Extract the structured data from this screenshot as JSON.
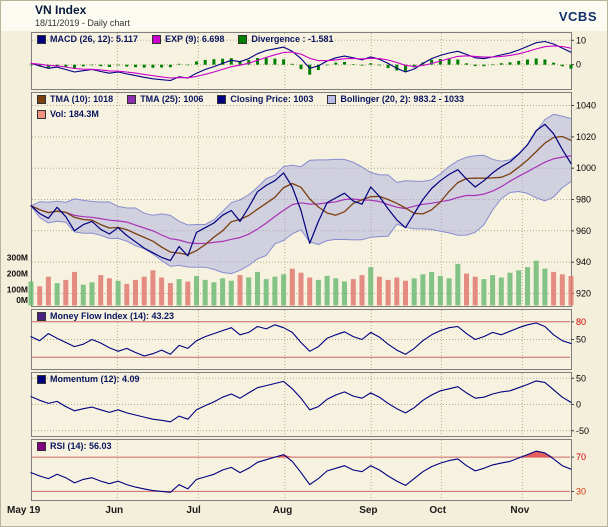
{
  "header": {
    "title": "VN Index",
    "subtitle": "18/11/2019 - Daily chart",
    "brand": "VCBS"
  },
  "chart_data": {
    "type": "line",
    "title": "VN Index daily chart with MACD, Bollinger, Volume, MFI, Momentum and RSI panels",
    "x_axis": {
      "labels": [
        "May 19",
        "Jun",
        "Jul",
        "Aug",
        "Sep",
        "Oct",
        "Nov"
      ],
      "fractions": [
        0,
        0.16,
        0.31,
        0.47,
        0.63,
        0.76,
        0.91
      ]
    },
    "panel_bg": "#f6f2df",
    "grid_color": "#b6ab8e",
    "panels": [
      {
        "id": "macd",
        "ylim": [
          -10,
          13
        ],
        "legend": [
          {
            "label": "MACD (26, 12): 5.117",
            "color": "#000080"
          },
          {
            "label": "EXP (9): 6.698",
            "color": "#cc00cc"
          },
          {
            "label": "Divergence : -1.581",
            "color": "#008000"
          }
        ],
        "ticks": [
          {
            "v": 10,
            "label": "10",
            "color": "#000000"
          },
          {
            "v": 0,
            "label": "0",
            "color": "#000000"
          }
        ],
        "exp_alpha": 0.3,
        "line_colors": {
          "macd": "#000080",
          "exp": "#cc00cc",
          "divergence": "#008000"
        },
        "series": {
          "macd": [
            0.5,
            -0.5,
            -1.5,
            -1.0,
            -2.0,
            -3.0,
            -2.5,
            -2.0,
            -2.8,
            -3.5,
            -3.0,
            -3.8,
            -4.5,
            -5.2,
            -5.8,
            -6.2,
            -6.5,
            -5.0,
            -5.5,
            -3.5,
            -2.0,
            -0.8,
            0.5,
            1.8,
            1.2,
            2.5,
            4.5,
            5.8,
            6.5,
            7.2,
            5.5,
            2.5,
            -1.5,
            -0.5,
            1.5,
            2.8,
            3.5,
            2.8,
            2.0,
            3.2,
            2.2,
            0.5,
            -1.5,
            -3.0,
            -1.8,
            0.5,
            2.5,
            3.8,
            4.8,
            5.5,
            4.2,
            2.8,
            2.5,
            3.2,
            4.0,
            4.8,
            6.0,
            7.5,
            9.0,
            9.5,
            8.5,
            6.8,
            5.117
          ]
        }
      },
      {
        "id": "price",
        "ylim": [
          912,
          1048
        ],
        "legend": [
          {
            "label": "TMA (10): 1018",
            "color": "#7b3f10"
          },
          {
            "label": "TMA (25): 1006",
            "color": "#8b2fb0"
          },
          {
            "label": "Closing Price: 1003",
            "color": "#000080"
          },
          {
            "label": "Bollinger (20, 2): 983.2 - 1033",
            "color": "#b9bce8"
          },
          {
            "label": "Vol: 184.3M",
            "color": "#ef927e"
          }
        ],
        "ticks": [
          {
            "v": 1040,
            "label": "1040"
          },
          {
            "v": 1020,
            "label": "1020"
          },
          {
            "v": 1000,
            "label": "1000"
          },
          {
            "v": 980,
            "label": "980"
          },
          {
            "v": 960,
            "label": "960"
          },
          {
            "v": 940,
            "label": "940"
          },
          {
            "v": 920,
            "label": "920"
          }
        ],
        "volume_ticks": [
          {
            "v": 300,
            "label": "300M"
          },
          {
            "v": 200,
            "label": "200M"
          },
          {
            "v": 100,
            "label": "100M"
          },
          {
            "v": 0,
            "label": "0M"
          }
        ],
        "line_colors": {
          "close": "#000080",
          "tma10": "#7b3f10",
          "tma25": "#a832b8",
          "bollinger_fill": "#a9aede",
          "bollinger_edge": "#888dd0",
          "vol_up": "#6fbb75",
          "vol_down": "#e07a72"
        },
        "series": {
          "close": [
            976,
            971,
            968,
            975,
            969,
            960,
            964,
            966,
            961,
            958,
            962,
            957,
            953,
            949,
            946,
            943,
            941,
            950,
            944,
            959,
            962,
            965,
            970,
            973,
            966,
            975,
            985,
            989,
            992,
            997,
            988,
            973,
            952,
            966,
            978,
            981,
            984,
            979,
            977,
            988,
            982,
            974,
            967,
            962,
            971,
            980,
            987,
            992,
            996,
            999,
            993,
            988,
            992,
            997,
            1001,
            1004,
            1009,
            1015,
            1024,
            1028,
            1022,
            1012,
            1003
          ],
          "volume": [
            150,
            120,
            180,
            140,
            160,
            210,
            130,
            145,
            190,
            170,
            155,
            135,
            160,
            180,
            220,
            175,
            140,
            165,
            150,
            185,
            160,
            145,
            170,
            155,
            190,
            175,
            210,
            165,
            180,
            195,
            230,
            205,
            175,
            160,
            185,
            170,
            150,
            165,
            190,
            240,
            180,
            160,
            175,
            155,
            170,
            195,
            210,
            185,
            170,
            260,
            200,
            180,
            165,
            190,
            175,
            205,
            220,
            240,
            280,
            230,
            210,
            195,
            184.3
          ]
        }
      },
      {
        "id": "mfi",
        "ylim": [
          0,
          100
        ],
        "legend": [
          {
            "label": "Money Flow Index (14): 43.23",
            "color": "#4b2182"
          }
        ],
        "ticks": [
          {
            "v": 80,
            "label": "80",
            "color": "#cc0000"
          },
          {
            "v": 50,
            "label": "50",
            "color": "#000000"
          }
        ],
        "thresholds": [
          {
            "v": 80,
            "color": "#cc6666"
          },
          {
            "v": 20,
            "color": "#cc6666"
          }
        ],
        "line_colors": {
          "mfi": "#000080"
        },
        "series": {
          "mfi": [
            55,
            48,
            60,
            52,
            45,
            38,
            42,
            50,
            44,
            36,
            30,
            35,
            28,
            22,
            26,
            32,
            25,
            40,
            35,
            48,
            55,
            60,
            65,
            70,
            58,
            62,
            72,
            68,
            75,
            70,
            62,
            45,
            30,
            38,
            52,
            58,
            63,
            55,
            50,
            62,
            54,
            42,
            32,
            25,
            35,
            48,
            58,
            65,
            70,
            72,
            60,
            50,
            55,
            62,
            58,
            64,
            70,
            75,
            78,
            72,
            58,
            48,
            43.23
          ]
        }
      },
      {
        "id": "momentum",
        "ylim": [
          -60,
          60
        ],
        "legend": [
          {
            "label": "Momentum (12): 4.09",
            "color": "#000080"
          }
        ],
        "ticks": [
          {
            "v": 50,
            "label": "50",
            "color": "#000000"
          },
          {
            "v": 0,
            "label": "0",
            "color": "#000000"
          },
          {
            "v": -50,
            "label": "-50",
            "color": "#000000"
          }
        ],
        "line_colors": {
          "momentum": "#000080"
        },
        "series": {
          "momentum": [
            15,
            8,
            2,
            6,
            -4,
            -12,
            -8,
            -5,
            -10,
            -15,
            -10,
            -16,
            -20,
            -24,
            -28,
            -30,
            -33,
            -22,
            -28,
            -10,
            -2,
            5,
            14,
            20,
            12,
            22,
            32,
            36,
            40,
            44,
            30,
            12,
            -10,
            -4,
            10,
            18,
            24,
            16,
            12,
            22,
            14,
            2,
            -8,
            -16,
            -6,
            8,
            18,
            26,
            30,
            34,
            22,
            12,
            14,
            20,
            24,
            26,
            32,
            38,
            45,
            42,
            28,
            14,
            4.09
          ]
        }
      },
      {
        "id": "rsi",
        "ylim": [
          20,
          90
        ],
        "legend": [
          {
            "label": "RSI (14): 56.03",
            "color": "#800080"
          }
        ],
        "ticks": [
          {
            "v": 70,
            "label": "70",
            "color": "#cc0000"
          },
          {
            "v": 30,
            "label": "30",
            "color": "#cc3300"
          }
        ],
        "thresholds": [
          {
            "v": 70,
            "color": "#cc6666"
          },
          {
            "v": 30,
            "color": "#cc6666"
          }
        ],
        "overbought_fill": "#e04848",
        "line_colors": {
          "rsi": "#000080"
        },
        "series": {
          "rsi": [
            52,
            48,
            45,
            50,
            46,
            40,
            44,
            46,
            42,
            39,
            42,
            38,
            35,
            33,
            31,
            30,
            29,
            38,
            33,
            44,
            47,
            50,
            55,
            58,
            52,
            57,
            64,
            67,
            70,
            73,
            65,
            52,
            38,
            45,
            54,
            57,
            60,
            55,
            53,
            60,
            55,
            48,
            42,
            37,
            45,
            53,
            59,
            63,
            66,
            68,
            60,
            54,
            57,
            61,
            63,
            65,
            69,
            73,
            77,
            75,
            68,
            60,
            56.03
          ]
        }
      }
    ]
  }
}
